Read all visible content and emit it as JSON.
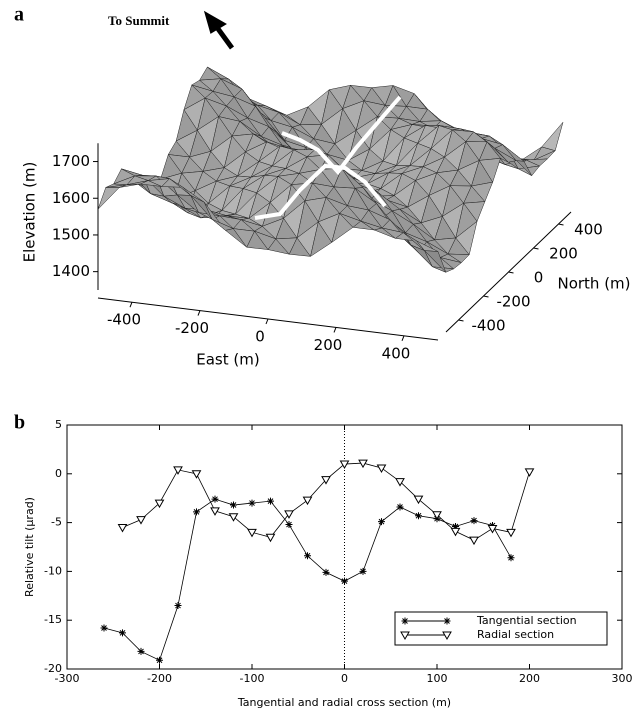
{
  "chart_data": [
    {
      "type": "surface3d",
      "label": "a",
      "annotation": "To Summit",
      "xlabel": "East (m)",
      "ylabel": "North (m)",
      "zlabel": "Elevation (m)",
      "xlim": [
        -500,
        500
      ],
      "ylim": [
        -500,
        500
      ],
      "zlim": [
        1350,
        1750
      ],
      "xticks": [
        -400,
        -200,
        0,
        200,
        400
      ],
      "yticks": [
        -400,
        -200,
        0,
        200,
        400
      ],
      "zticks": [
        1400,
        1500,
        1600,
        1700
      ],
      "color": "#a8a8a8"
    },
    {
      "type": "line",
      "label": "b",
      "xlabel": "Tangential and radial cross section (m)",
      "ylabel": "Relative tilt (µrad)",
      "xlim": [
        -300,
        300
      ],
      "ylim": [
        -20,
        5
      ],
      "xticks": [
        -300,
        -200,
        -100,
        0,
        100,
        200,
        300
      ],
      "yticks": [
        -20,
        -15,
        -10,
        -5,
        0,
        5
      ],
      "vlines": [
        0
      ],
      "legend": "lower-right",
      "series": [
        {
          "name": "Tangential section",
          "color": "#000000",
          "marker": "asterisk",
          "x": [
            -260,
            -240,
            -220,
            -200,
            -180,
            -160,
            -140,
            -120,
            -100,
            -80,
            -60,
            -40,
            -20,
            0,
            20,
            40,
            60,
            80,
            100,
            120,
            140,
            160,
            180
          ],
          "values": [
            -15.8,
            -16.3,
            -18.2,
            -19.1,
            -13.5,
            -3.9,
            -2.6,
            -3.2,
            -3.0,
            -2.8,
            -5.2,
            -8.4,
            -10.1,
            -11.0,
            -10.0,
            -4.9,
            -3.4,
            -4.3,
            -4.6,
            -5.4,
            -4.8,
            -5.3,
            -8.6
          ]
        },
        {
          "name": "Radial section",
          "color": "#000000",
          "marker": "triangle-down",
          "x": [
            -240,
            -220,
            -200,
            -180,
            -160,
            -140,
            -120,
            -100,
            -80,
            -60,
            -40,
            -20,
            0,
            20,
            40,
            60,
            80,
            100,
            120,
            140,
            160,
            180,
            200
          ],
          "values": [
            -5.5,
            -4.7,
            -3.0,
            0.4,
            0.0,
            -3.8,
            -4.4,
            -6.0,
            -6.5,
            -4.1,
            -2.7,
            -0.6,
            1.0,
            1.1,
            0.6,
            -0.8,
            -2.6,
            -4.2,
            -5.9,
            -6.8,
            -5.6,
            -6.0,
            0.2
          ]
        }
      ]
    }
  ]
}
